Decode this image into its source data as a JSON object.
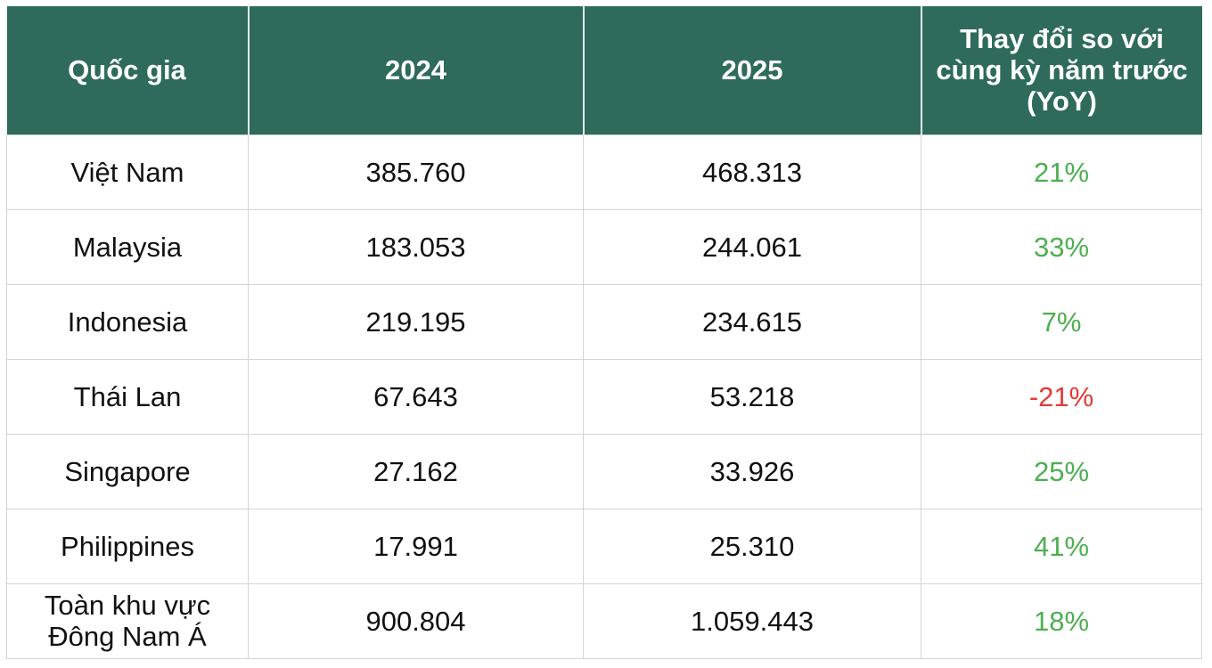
{
  "chart_data": {
    "type": "table",
    "columns": [
      "Quốc gia",
      "2024",
      "2025",
      "Thay đổi so với cùng kỳ năm trước (YoY)"
    ],
    "rows": [
      {
        "country": "Việt Nam",
        "y2024": "385.760",
        "y2025": "468.313",
        "yoy": "21%",
        "trend": "pos"
      },
      {
        "country": "Malaysia",
        "y2024": "183.053",
        "y2025": "244.061",
        "yoy": "33%",
        "trend": "pos"
      },
      {
        "country": "Indonesia",
        "y2024": "219.195",
        "y2025": "234.615",
        "yoy": "7%",
        "trend": "pos"
      },
      {
        "country": "Thái Lan",
        "y2024": "67.643",
        "y2025": "53.218",
        "yoy": "-21%",
        "trend": "neg"
      },
      {
        "country": "Singapore",
        "y2024": "27.162",
        "y2025": "33.926",
        "yoy": "25%",
        "trend": "pos"
      },
      {
        "country": "Philippines",
        "y2024": "17.991",
        "y2025": "25.310",
        "yoy": "41%",
        "trend": "pos"
      },
      {
        "country": "Toàn khu vực Đông Nam Á",
        "y2024": "900.804",
        "y2025": "1.059.443",
        "yoy": "18%",
        "trend": "pos"
      }
    ]
  },
  "colors": {
    "header_bg": "#2e6b5c",
    "header_text": "#ffffff",
    "positive": "#4caf50",
    "negative": "#e53935",
    "grid": "#d4d4d4"
  }
}
